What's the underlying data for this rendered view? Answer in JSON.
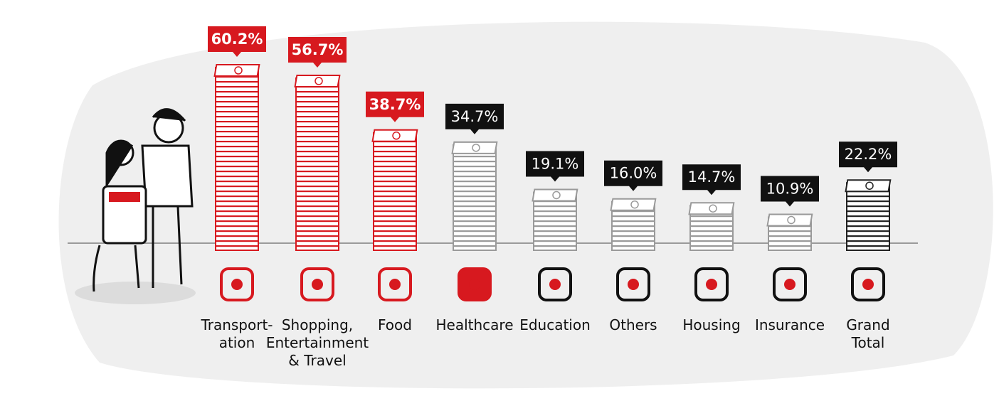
{
  "chart_data": {
    "type": "bar",
    "categories": [
      "Transport-\nation",
      "Shopping,\nEntertainment\n& Travel",
      "Food",
      "Healthcare",
      "Education",
      "Others",
      "Housing",
      "Insurance",
      "Grand\nTotal"
    ],
    "values": [
      60.2,
      56.7,
      38.7,
      34.7,
      19.1,
      16.0,
      14.7,
      10.9,
      22.2
    ],
    "value_labels": [
      "60.2%",
      "56.7%",
      "38.7%",
      "34.7%",
      "19.1%",
      "16.0%",
      "14.7%",
      "10.9%",
      "22.2%"
    ],
    "colors": [
      "#d7191f",
      "#d7191f",
      "#d7191f",
      "#9a9a9a",
      "#9a9a9a",
      "#9a9a9a",
      "#9a9a9a",
      "#9a9a9a",
      "#222222"
    ],
    "label_colors": [
      "#d7191f",
      "#d7191f",
      "#d7191f",
      "#111111",
      "#111111",
      "#111111",
      "#111111",
      "#111111",
      "#111111"
    ]
  }
}
